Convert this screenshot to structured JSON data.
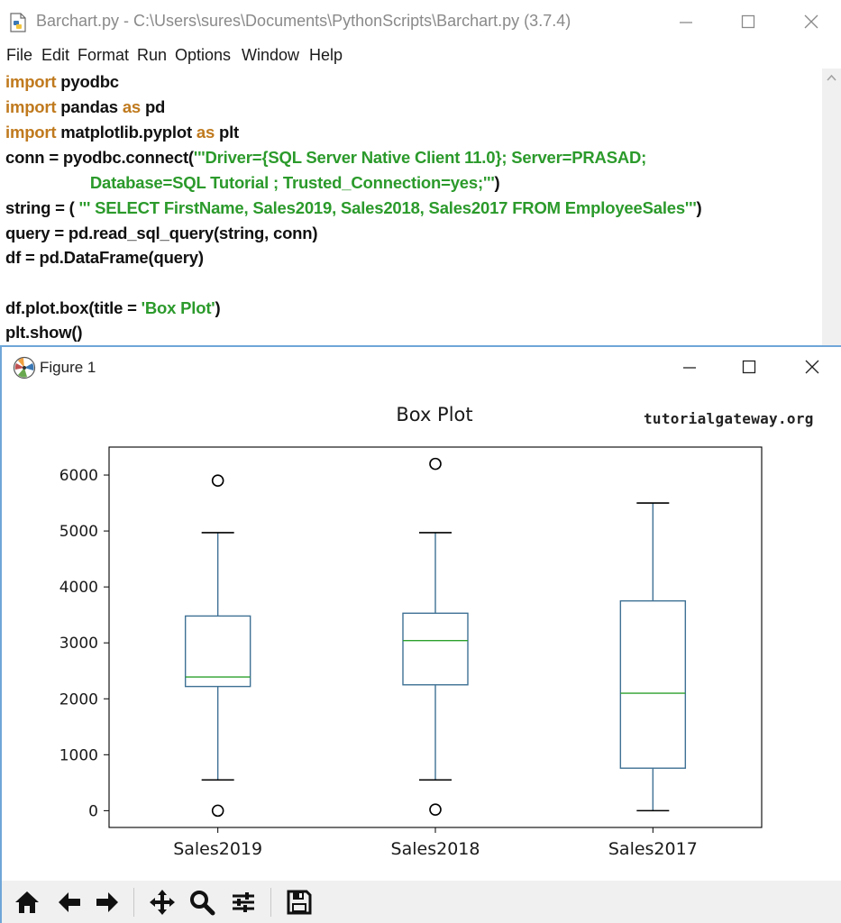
{
  "idle": {
    "title": "Barchart.py - C:\\Users\\sures\\Documents\\PythonScripts\\Barchart.py (3.7.4)",
    "menu": [
      "File",
      "Edit",
      "Format",
      "Run",
      "Options",
      "Window",
      "Help"
    ],
    "code": [
      [
        {
          "t": "import",
          "c": "kw"
        },
        {
          "t": " pyodbc"
        }
      ],
      [
        {
          "t": "import",
          "c": "kw"
        },
        {
          "t": " pandas "
        },
        {
          "t": "as",
          "c": "kw"
        },
        {
          "t": " pd"
        }
      ],
      [
        {
          "t": "import",
          "c": "kw"
        },
        {
          "t": " matplotlib.pyplot "
        },
        {
          "t": "as",
          "c": "kw"
        },
        {
          "t": " plt"
        }
      ],
      [
        {
          "t": "conn = pyodbc.connect("
        },
        {
          "t": "'''Driver={SQL Server Native Client 11.0}; Server=PRASAD;",
          "c": "str"
        }
      ],
      [
        {
          "t": "                   "
        },
        {
          "t": "Database=SQL Tutorial ; Trusted_Connection=yes;'''",
          "c": "str"
        },
        {
          "t": ")"
        }
      ],
      [
        {
          "t": "string = ( "
        },
        {
          "t": "''' SELECT FirstName, Sales2019, Sales2018, Sales2017 FROM EmployeeSales'''",
          "c": "str"
        },
        {
          "t": ")"
        }
      ],
      [
        {
          "t": "query = pd.read_sql_query(string, conn)"
        }
      ],
      [
        {
          "t": "df = pd.DataFrame(query)"
        }
      ],
      [
        {
          "t": ""
        }
      ],
      [
        {
          "t": "df.plot.box(title = "
        },
        {
          "t": "'Box Plot'",
          "c": "str"
        },
        {
          "t": ")"
        }
      ],
      [
        {
          "t": "plt.show()"
        }
      ]
    ]
  },
  "figure": {
    "title": "Figure 1",
    "watermark": "tutorialgateway.org",
    "toolbar": [
      "home-icon",
      "back-arrow-icon",
      "forward-arrow-icon",
      "pan-icon",
      "zoom-icon",
      "configure-subplots-icon",
      "save-icon"
    ]
  },
  "chart_data": {
    "type": "box",
    "title": "Box Plot",
    "xlabel": "",
    "ylabel": "",
    "categories": [
      "Sales2019",
      "Sales2018",
      "Sales2017"
    ],
    "yticks": [
      0,
      1000,
      2000,
      3000,
      4000,
      5000,
      6000
    ],
    "ylim": [
      -300,
      6500
    ],
    "boxes": [
      {
        "name": "Sales2019",
        "whislo": 550,
        "q1": 2220,
        "med": 2390,
        "q3": 3480,
        "whishi": 4970,
        "fliers": [
          0,
          5900
        ]
      },
      {
        "name": "Sales2018",
        "whislo": 550,
        "q1": 2250,
        "med": 3040,
        "q3": 3530,
        "whishi": 4970,
        "fliers": [
          20,
          6200
        ]
      },
      {
        "name": "Sales2017",
        "whislo": 0,
        "q1": 760,
        "med": 2100,
        "q3": 3750,
        "whishi": 5500,
        "fliers": []
      }
    ],
    "colors": {
      "box": "#3f7194",
      "median": "#2ca02c",
      "flier": "#000000"
    },
    "grid": false
  }
}
